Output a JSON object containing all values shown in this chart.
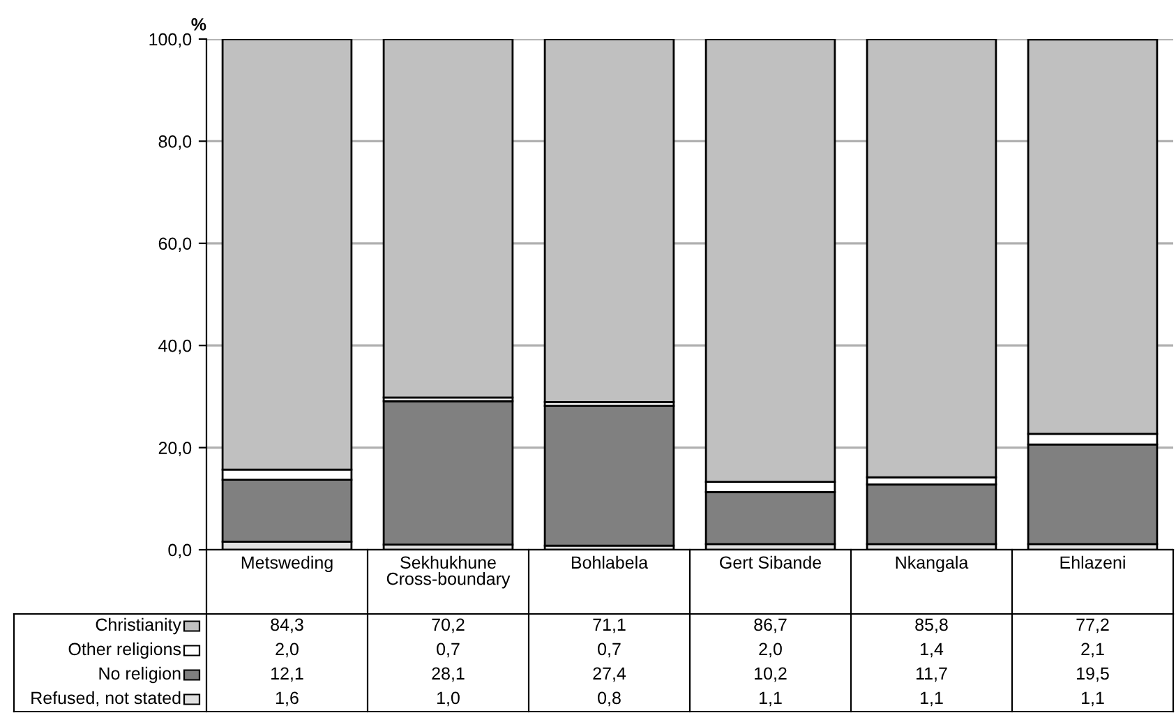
{
  "chart_data": {
    "type": "bar",
    "stacked": true,
    "ylabel": "%",
    "categories": [
      "Metsweding",
      "Sekhukhune\nCross-boundary",
      "Bohlabela",
      "Gert Sibande",
      "Nkangala",
      "Ehlazeni"
    ],
    "series": [
      {
        "name": "Refused, not stated",
        "color": "#e0e0e0",
        "values": [
          1.6,
          1.0,
          0.8,
          1.1,
          1.1,
          1.1
        ],
        "value_labels": [
          "1,6",
          "1,0",
          "0,8",
          "1,1",
          "1,1",
          "1,1"
        ]
      },
      {
        "name": "No religion",
        "color": "#808080",
        "values": [
          12.1,
          28.1,
          27.4,
          10.2,
          11.7,
          19.5
        ],
        "value_labels": [
          "12,1",
          "28,1",
          "27,4",
          "10,2",
          "11,7",
          "19,5"
        ]
      },
      {
        "name": "Other religions",
        "color": "#ffffff",
        "values": [
          2.0,
          0.7,
          0.7,
          2.0,
          1.4,
          2.1
        ],
        "value_labels": [
          "2,0",
          "0,7",
          "0,7",
          "2,0",
          "1,4",
          "2,1"
        ]
      },
      {
        "name": "Christianity",
        "color": "#c0c0c0",
        "values": [
          84.3,
          70.2,
          71.1,
          86.7,
          85.8,
          77.2
        ],
        "value_labels": [
          "84,3",
          "70,2",
          "71,1",
          "86,7",
          "85,8",
          "77,2"
        ]
      }
    ],
    "ylim": [
      0,
      100
    ],
    "yticks": [
      {
        "value": 0,
        "label": "0,0"
      },
      {
        "value": 20,
        "label": "20,0"
      },
      {
        "value": 40,
        "label": "40,0"
      },
      {
        "value": 60,
        "label": "60,0"
      },
      {
        "value": 80,
        "label": "80,0"
      },
      {
        "value": 100,
        "label": "100,0"
      }
    ],
    "grid": "y",
    "legend": "bottom"
  }
}
